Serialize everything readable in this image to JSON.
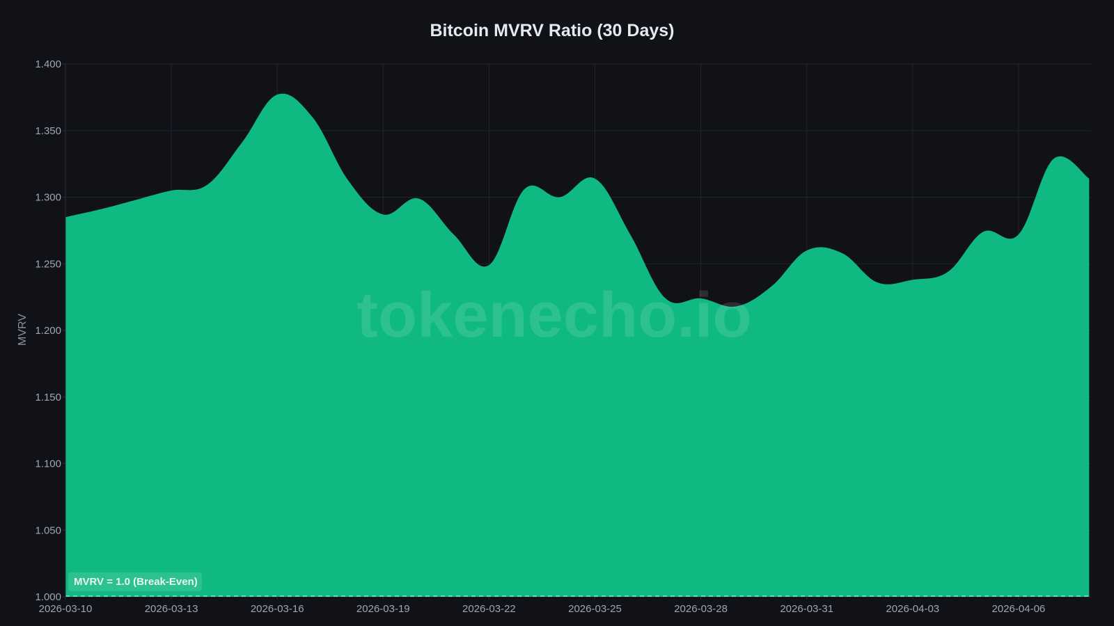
{
  "chart_data": {
    "type": "area",
    "title": "Bitcoin MVRV Ratio (30 Days)",
    "xlabel": "",
    "ylabel": "MVRV",
    "ylim": [
      1.0,
      1.4
    ],
    "grid": true,
    "legend": null,
    "fill_color": "#10b981",
    "y_ticks": [
      "1.000",
      "1.050",
      "1.100",
      "1.150",
      "1.200",
      "1.250",
      "1.300",
      "1.350",
      "1.400"
    ],
    "x_ticks": [
      "2026-03-10",
      "2026-03-13",
      "2026-03-16",
      "2026-03-19",
      "2026-03-22",
      "2026-03-25",
      "2026-03-28",
      "2026-03-31",
      "2026-04-03",
      "2026-04-06"
    ],
    "x": [
      "2026-03-10",
      "2026-03-11",
      "2026-03-12",
      "2026-03-13",
      "2026-03-14",
      "2026-03-15",
      "2026-03-16",
      "2026-03-17",
      "2026-03-18",
      "2026-03-19",
      "2026-03-20",
      "2026-03-21",
      "2026-03-22",
      "2026-03-23",
      "2026-03-24",
      "2026-03-25",
      "2026-03-26",
      "2026-03-27",
      "2026-03-28",
      "2026-03-29",
      "2026-03-30",
      "2026-03-31",
      "2026-04-01",
      "2026-04-02",
      "2026-04-03",
      "2026-04-04",
      "2026-04-05",
      "2026-04-06",
      "2026-04-07",
      "2026-04-08"
    ],
    "series": [
      {
        "name": "MVRV",
        "values": [
          1.285,
          1.291,
          1.298,
          1.305,
          1.309,
          1.341,
          1.377,
          1.36,
          1.313,
          1.287,
          1.299,
          1.272,
          1.249,
          1.306,
          1.3,
          1.314,
          1.272,
          1.224,
          1.224,
          1.218,
          1.233,
          1.26,
          1.258,
          1.236,
          1.238,
          1.244,
          1.274,
          1.272,
          1.329,
          1.314
        ]
      }
    ],
    "annotations": [
      {
        "type": "hline",
        "y": 1.0,
        "style": "dashed",
        "label": "MVRV = 1.0 (Break-Even)"
      }
    ],
    "watermark": "tokenecho.io"
  },
  "colors": {
    "background": "#111217",
    "area": "#10b981",
    "grid": "#23252d",
    "tick_text": "#a0a5b3",
    "title_text": "#e6e9ef"
  }
}
